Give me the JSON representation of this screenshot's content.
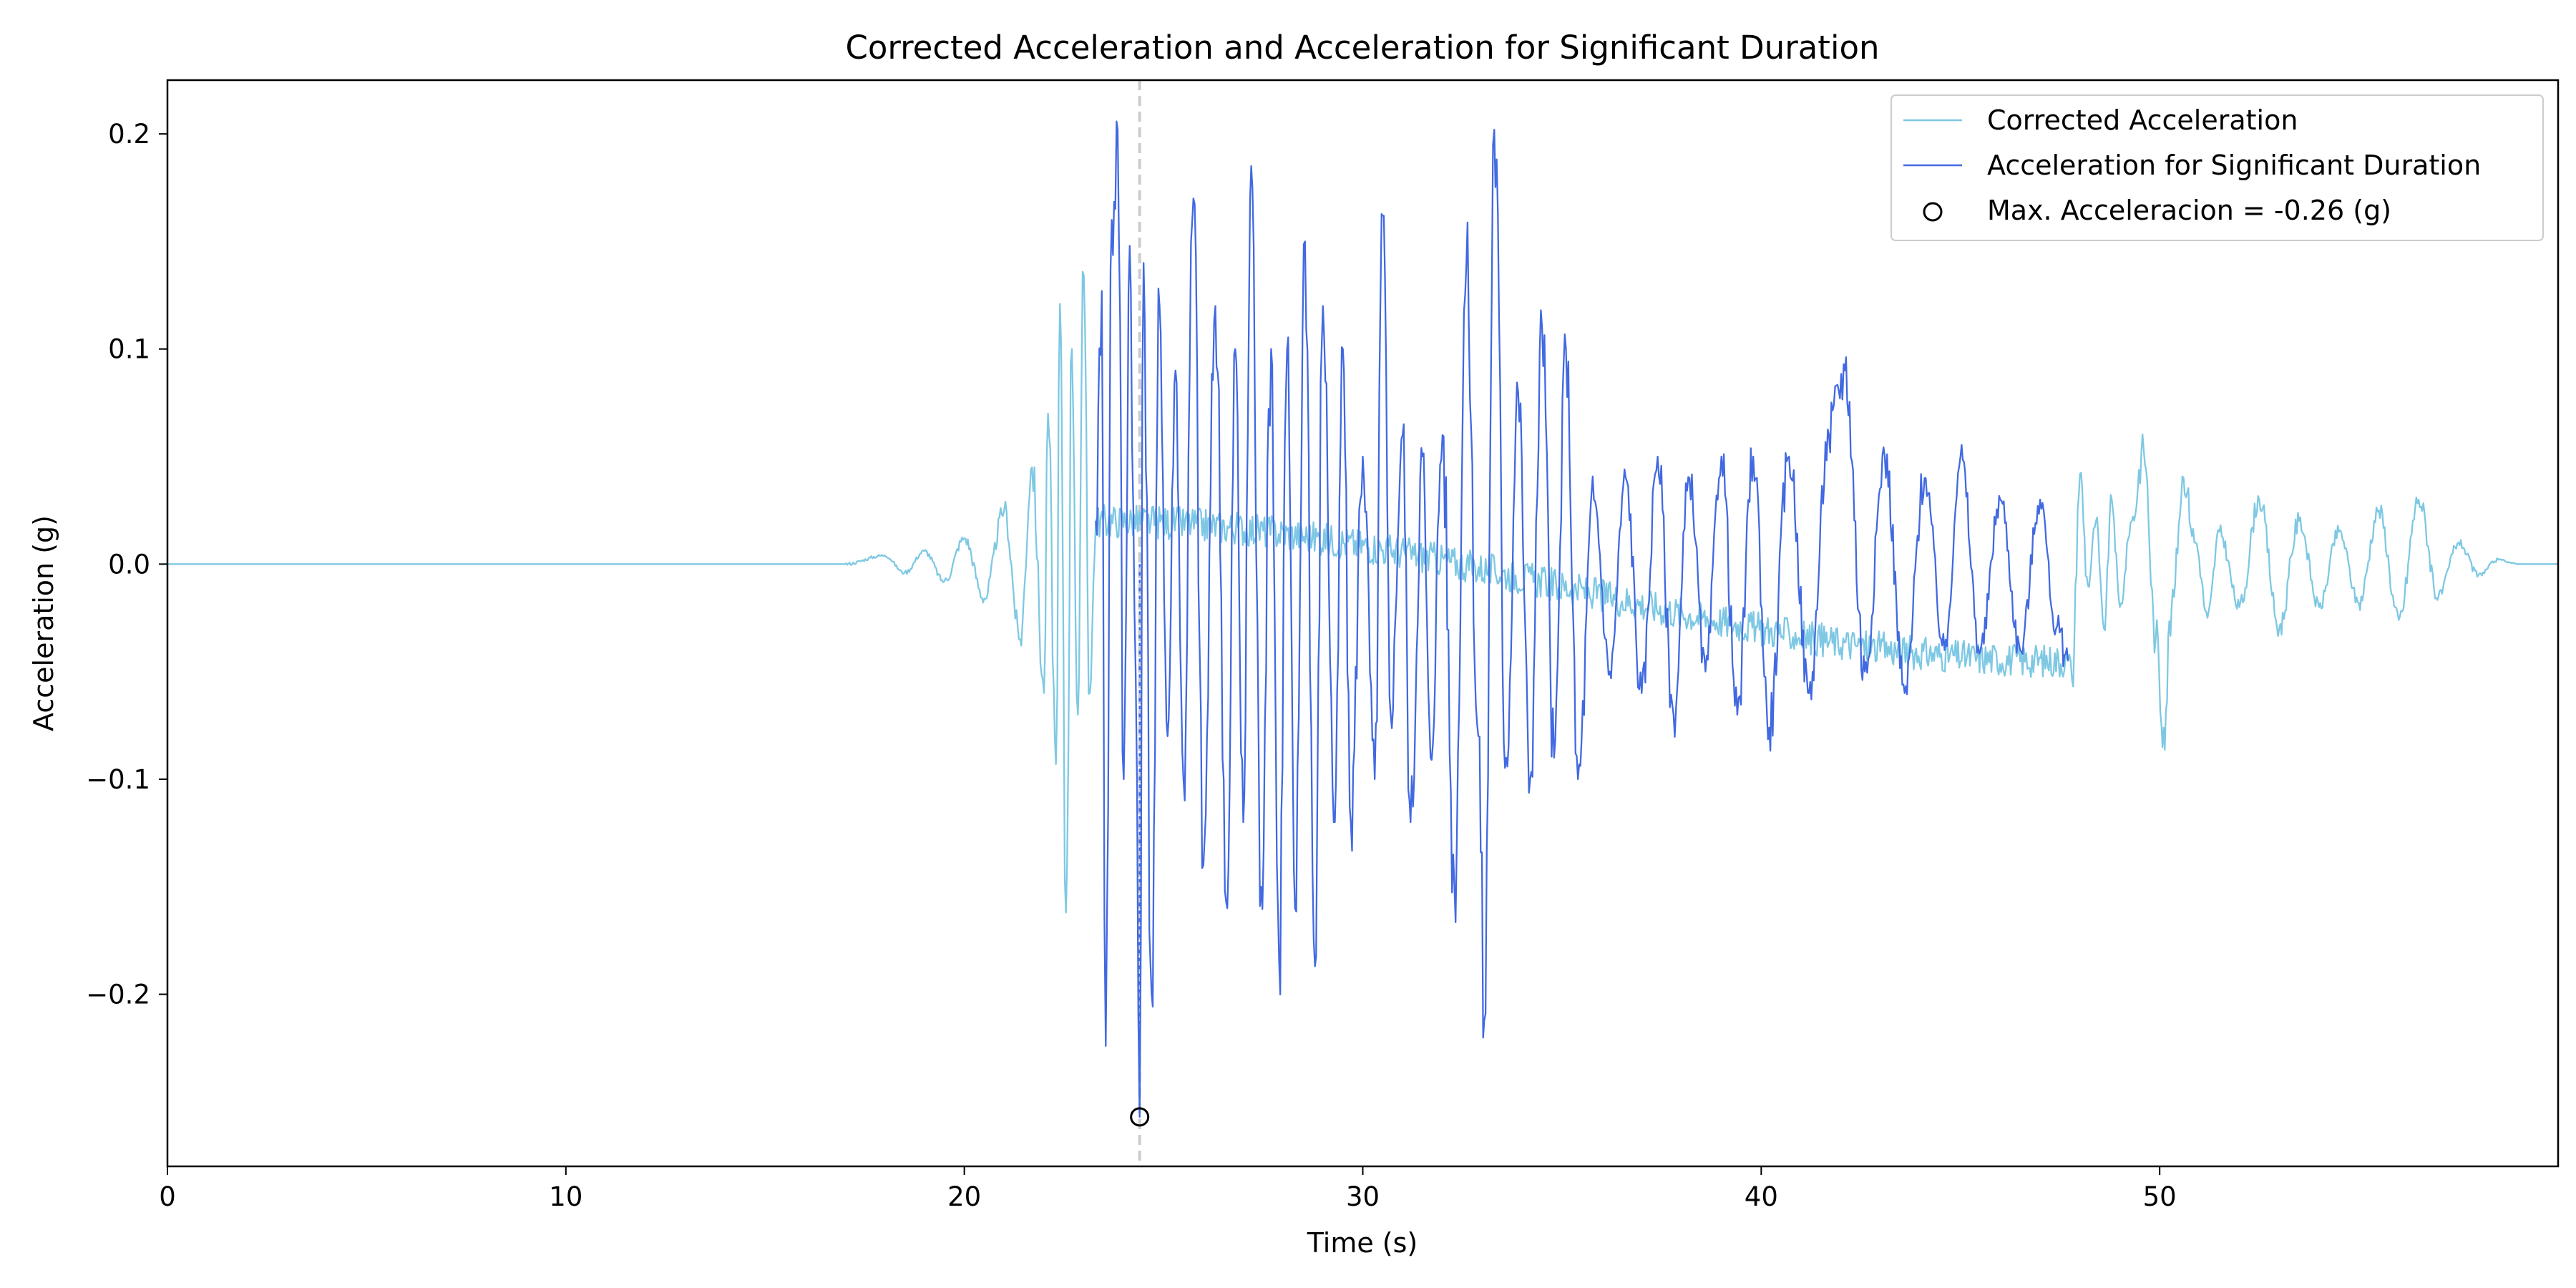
{
  "chart_data": {
    "type": "line",
    "title": "Corrected Acceleration and Acceleration for Significant Duration",
    "xlabel": "Time (s)",
    "ylabel": "Acceleration (g)",
    "xlim": [
      0,
      60
    ],
    "ylim": [
      -0.28,
      0.225
    ],
    "xticks": [
      0,
      10,
      20,
      30,
      40,
      50
    ],
    "yticks": [
      0.2,
      0.1,
      0.0,
      -0.1,
      -0.2
    ],
    "ytick_labels": [
      "0.2",
      "0.1",
      "0.0",
      "−0.1",
      "−0.2"
    ],
    "grid": false,
    "legend_position": "top-right",
    "colors": {
      "corrected": "#7ec8e3",
      "significant": "#4169e1",
      "marker": "#000000",
      "vline": "#cccccc"
    },
    "significant_duration": [
      23.3,
      47.7
    ],
    "max_time": 24.4,
    "max_value": -0.257,
    "series": [
      {
        "name": "Corrected Acceleration",
        "keypoints": [
          [
            0,
            0
          ],
          [
            17.0,
            0
          ],
          [
            18.0,
            0.004
          ],
          [
            18.5,
            -0.004
          ],
          [
            19.0,
            0.006
          ],
          [
            19.5,
            -0.008
          ],
          [
            20.0,
            0.012
          ],
          [
            20.5,
            -0.016
          ],
          [
            21.0,
            0.025
          ],
          [
            21.4,
            -0.035
          ],
          [
            21.7,
            0.045
          ],
          [
            22.0,
            -0.06
          ],
          [
            22.1,
            0.07
          ],
          [
            22.3,
            -0.093
          ],
          [
            22.4,
            0.121
          ],
          [
            22.55,
            -0.162
          ],
          [
            22.7,
            0.1
          ],
          [
            22.85,
            -0.07
          ],
          [
            23.0,
            0.134
          ],
          [
            23.15,
            -0.06
          ],
          [
            23.3,
            0.02
          ],
          [
            47.7,
            -0.045
          ],
          [
            47.8,
            -0.054
          ],
          [
            48.0,
            0.042
          ],
          [
            48.2,
            -0.01
          ],
          [
            48.4,
            0.02
          ],
          [
            48.6,
            -0.03
          ],
          [
            48.8,
            0.03
          ],
          [
            49.0,
            -0.02
          ],
          [
            49.3,
            0.02
          ],
          [
            49.6,
            0.053
          ],
          [
            49.9,
            -0.035
          ],
          [
            50.1,
            -0.076
          ],
          [
            50.3,
            -0.02
          ],
          [
            50.6,
            0.04
          ],
          [
            50.9,
            0.01
          ],
          [
            51.2,
            -0.025
          ],
          [
            51.5,
            0.015
          ],
          [
            52.0,
            -0.02
          ],
          [
            52.5,
            0.03
          ],
          [
            53.0,
            -0.03
          ],
          [
            53.5,
            0.02
          ],
          [
            54.0,
            -0.02
          ],
          [
            54.5,
            0.015
          ],
          [
            55.0,
            -0.018
          ],
          [
            55.5,
            0.025
          ],
          [
            56.0,
            -0.026
          ],
          [
            56.5,
            0.03
          ],
          [
            57.0,
            -0.015
          ],
          [
            57.5,
            0.01
          ],
          [
            58.0,
            -0.005
          ],
          [
            58.5,
            0.002
          ],
          [
            59.0,
            0
          ],
          [
            60,
            0
          ]
        ]
      },
      {
        "name": "Acceleration for Significant Duration",
        "keypoints": [
          [
            23.3,
            0.02
          ],
          [
            23.45,
            0.127
          ],
          [
            23.55,
            -0.224
          ],
          [
            23.7,
            0.16
          ],
          [
            23.85,
            0.202
          ],
          [
            24.0,
            -0.1
          ],
          [
            24.15,
            0.148
          ],
          [
            24.3,
            -0.05
          ],
          [
            24.4,
            -0.257
          ],
          [
            24.5,
            0.14
          ],
          [
            24.7,
            -0.2
          ],
          [
            24.9,
            0.12
          ],
          [
            25.1,
            -0.08
          ],
          [
            25.3,
            0.09
          ],
          [
            25.5,
            -0.1
          ],
          [
            25.75,
            0.17
          ],
          [
            26.0,
            -0.14
          ],
          [
            26.3,
            0.12
          ],
          [
            26.6,
            -0.16
          ],
          [
            26.8,
            0.1
          ],
          [
            27.0,
            -0.12
          ],
          [
            27.2,
            0.185
          ],
          [
            27.45,
            -0.15
          ],
          [
            27.7,
            0.1
          ],
          [
            27.9,
            -0.185
          ],
          [
            28.1,
            0.1
          ],
          [
            28.3,
            -0.16
          ],
          [
            28.55,
            0.15
          ],
          [
            28.8,
            -0.187
          ],
          [
            29.0,
            0.12
          ],
          [
            29.3,
            -0.12
          ],
          [
            29.5,
            0.1
          ],
          [
            29.7,
            -0.12
          ],
          [
            30.0,
            0.05
          ],
          [
            30.3,
            -0.1
          ],
          [
            30.5,
            0.162
          ],
          [
            30.7,
            -0.07
          ],
          [
            31.0,
            0.06
          ],
          [
            31.2,
            -0.12
          ],
          [
            31.5,
            0.05
          ],
          [
            31.7,
            -0.09
          ],
          [
            32.0,
            0.06
          ],
          [
            32.3,
            -0.15
          ],
          [
            32.6,
            0.14
          ],
          [
            32.9,
            -0.08
          ],
          [
            33.05,
            -0.212
          ],
          [
            33.3,
            0.202
          ],
          [
            33.6,
            -0.09
          ],
          [
            33.9,
            0.08
          ],
          [
            34.2,
            -0.1
          ],
          [
            34.5,
            0.11
          ],
          [
            34.8,
            -0.09
          ],
          [
            35.1,
            0.1
          ],
          [
            35.4,
            -0.1
          ],
          [
            35.8,
            0.03
          ],
          [
            36.2,
            -0.05
          ],
          [
            36.6,
            0.04
          ],
          [
            37.0,
            -0.06
          ],
          [
            37.4,
            0.05
          ],
          [
            37.8,
            -0.07
          ],
          [
            38.2,
            0.04
          ],
          [
            38.6,
            -0.05
          ],
          [
            39.0,
            0.05
          ],
          [
            39.4,
            -0.07
          ],
          [
            39.8,
            0.05
          ],
          [
            40.2,
            -0.076
          ],
          [
            40.7,
            0.05
          ],
          [
            41.2,
            -0.06
          ],
          [
            41.7,
            0.06
          ],
          [
            42.1,
            0.09
          ],
          [
            42.6,
            -0.05
          ],
          [
            43.1,
            0.05
          ],
          [
            43.6,
            -0.06
          ],
          [
            44.1,
            0.04
          ],
          [
            44.6,
            -0.04
          ],
          [
            45.0,
            0.05
          ],
          [
            45.5,
            -0.04
          ],
          [
            46.0,
            0.03
          ],
          [
            46.5,
            -0.04
          ],
          [
            47.0,
            0.03
          ],
          [
            47.4,
            -0.03
          ],
          [
            47.7,
            -0.045
          ]
        ]
      }
    ],
    "legend": [
      {
        "label": "Corrected Acceleration"
      },
      {
        "label": "Acceleration for Significant Duration"
      },
      {
        "label": "Max. Acceleracion = -0.26 (g)"
      }
    ]
  }
}
